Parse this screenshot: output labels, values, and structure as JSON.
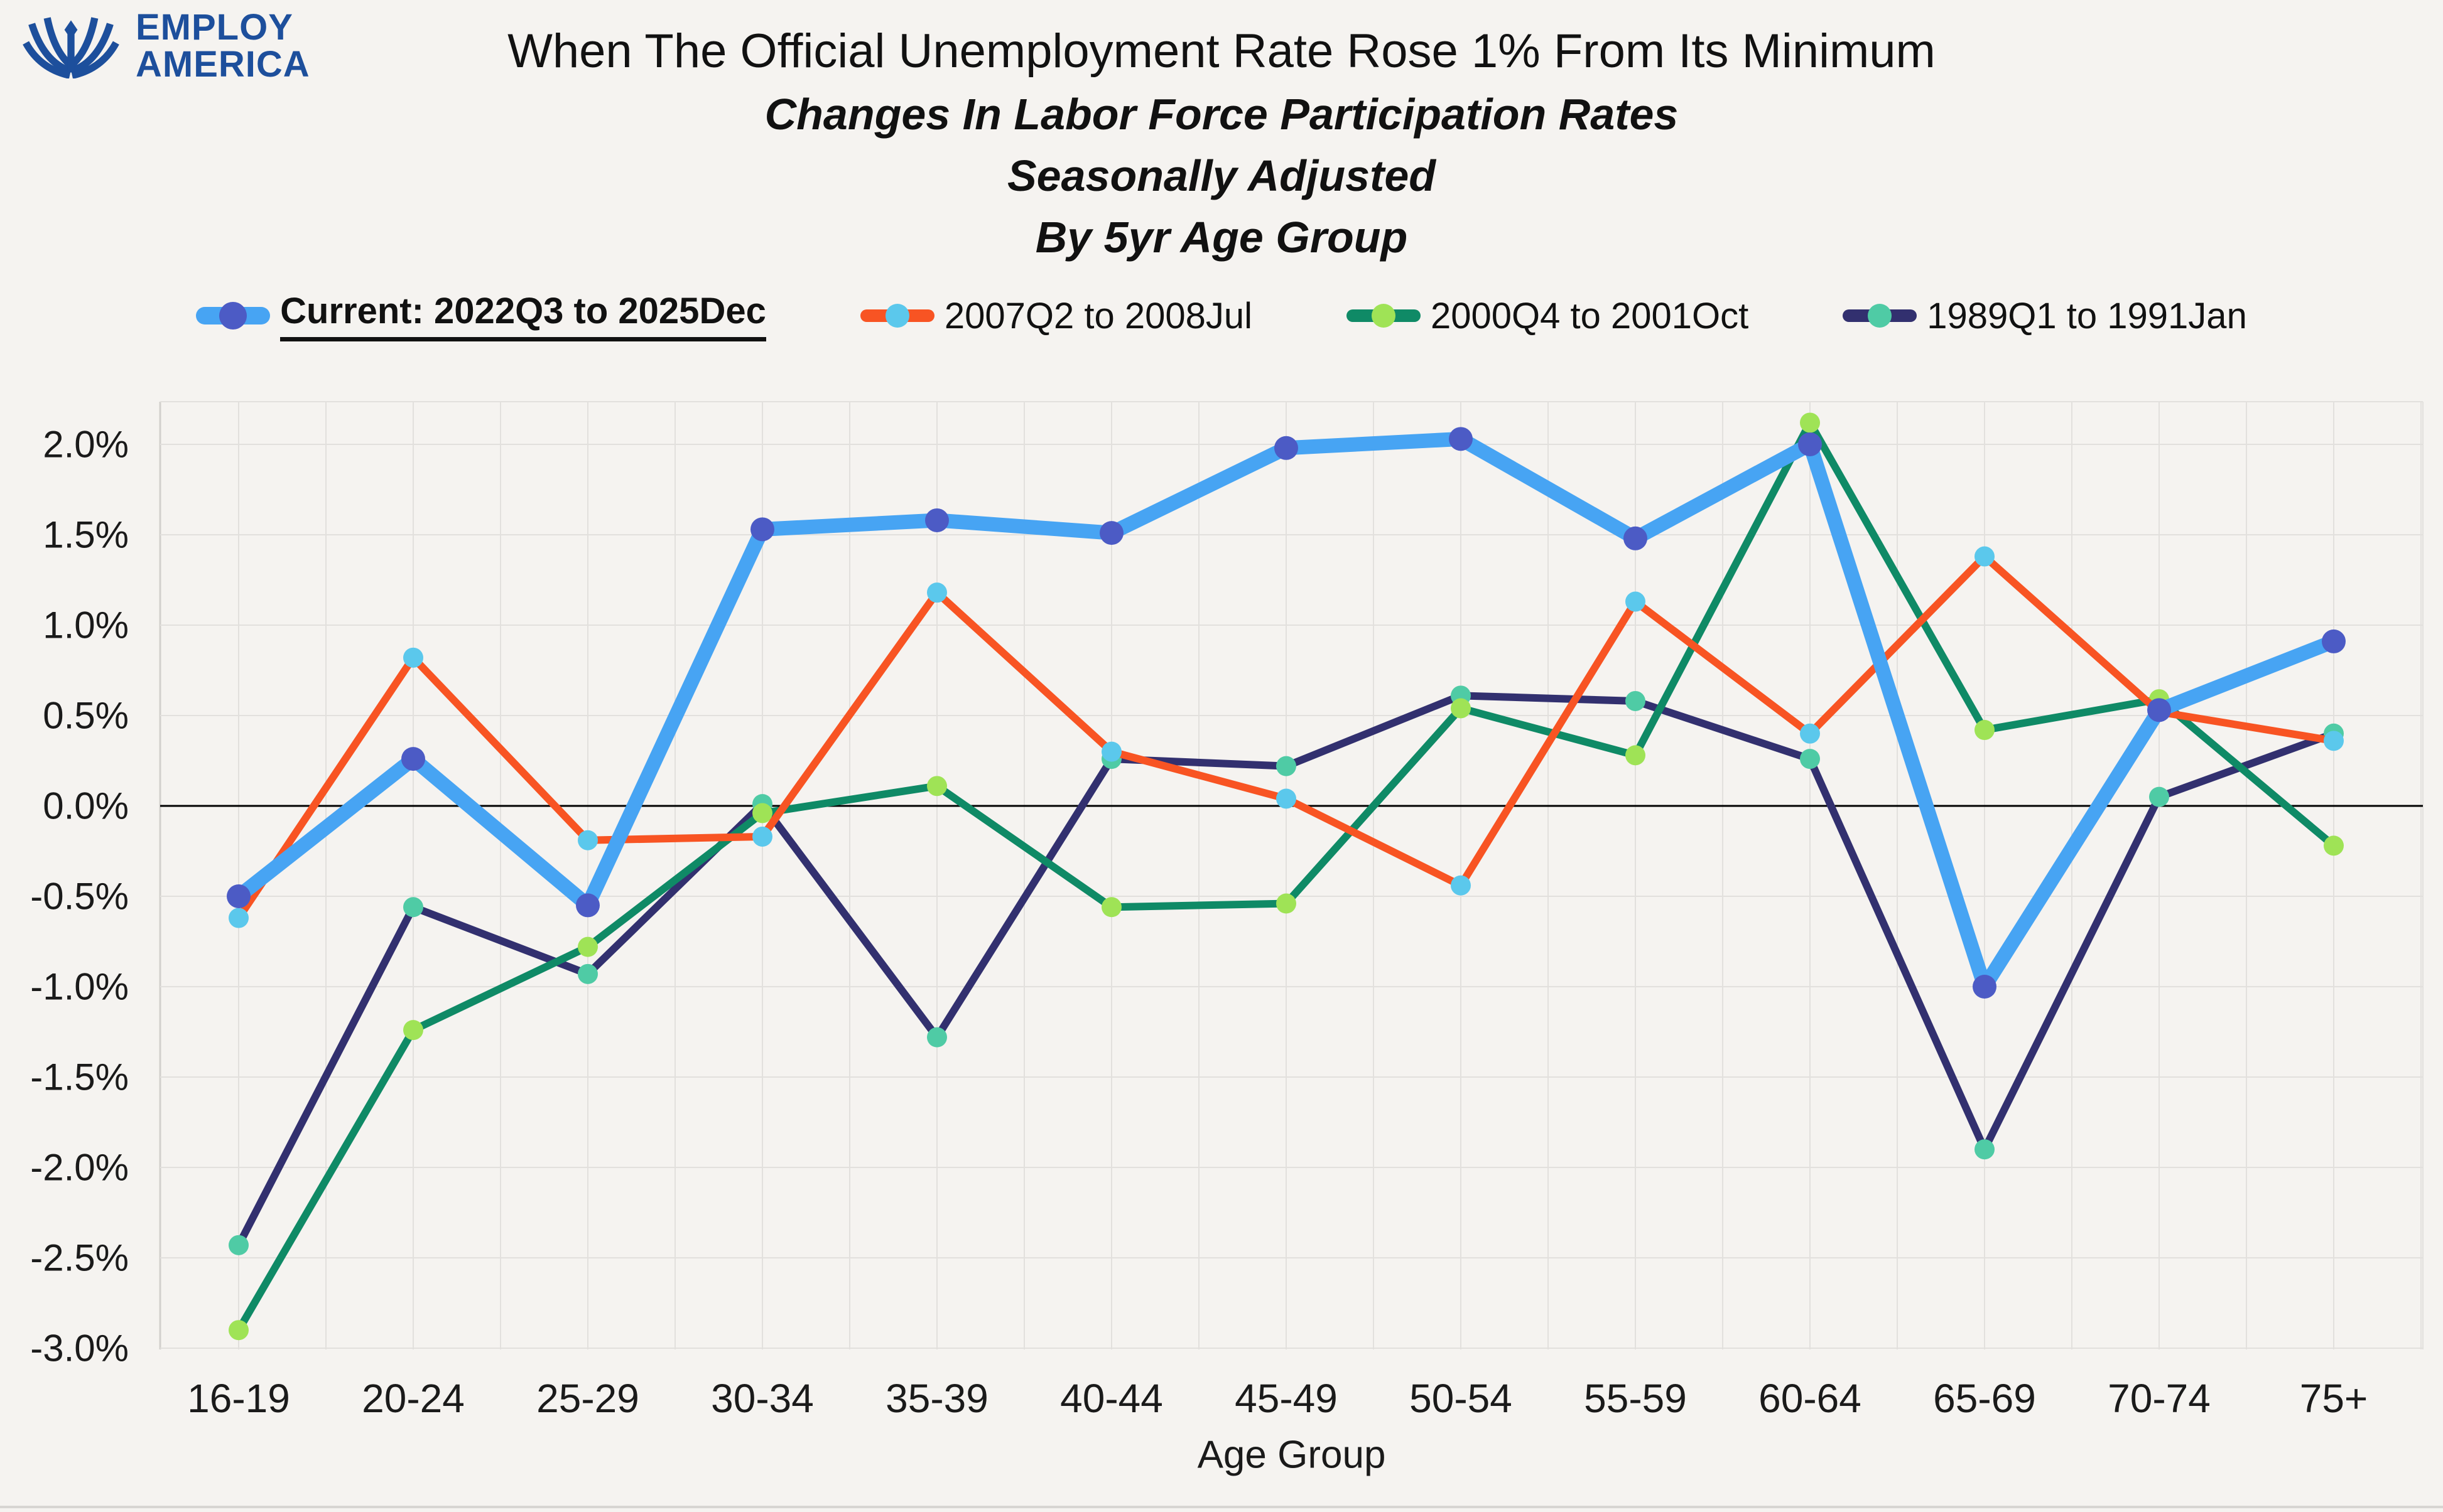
{
  "header": {
    "logo_line1": "EMPLOY",
    "logo_line2": "AMERICA",
    "logo_color": "#1d4f9c",
    "title": "When The Official Unemployment Rate Rose 1% From Its Minimum",
    "subtitle1": "Changes In Labor Force Participation Rates",
    "subtitle2": "Seasonally Adjusted",
    "subtitle3": "By 5yr Age Group"
  },
  "colors": {
    "background": "#f5f3f0",
    "grid": "#e2e0dd",
    "zero_line": "#000000",
    "axis_text": "#1a1a1a"
  },
  "chart_data": {
    "type": "line",
    "title": "When The Official Unemployment Rate Rose 1% From Its Minimum — Changes In Labor Force Participation Rates, Seasonally Adjusted, By 5yr Age Group",
    "xlabel": "Age Group",
    "ylabel": "",
    "ylim": [
      -3.0,
      2.0
    ],
    "ytick_step": 0.5,
    "ytick_labels": [
      "2.0%",
      "1.5%",
      "1.0%",
      "0.5%",
      "0.0%",
      "-0.5%",
      "-1.0%",
      "-1.5%",
      "-2.0%",
      "-2.5%",
      "-3.0%"
    ],
    "ytick_values": [
      2.0,
      1.5,
      1.0,
      0.5,
      0.0,
      -0.5,
      -1.0,
      -1.5,
      -2.0,
      -2.5,
      -3.0
    ],
    "grid": true,
    "legend_position": "top",
    "categories": [
      "16-19",
      "20-24",
      "25-29",
      "30-34",
      "35-39",
      "40-44",
      "45-49",
      "50-54",
      "55-59",
      "60-64",
      "65-69",
      "70-74",
      "75+"
    ],
    "series": [
      {
        "name": "Current: 2022Q3 to 2025Dec",
        "emphasis": true,
        "line_color": "#47a4f3",
        "marker_color": "#4c5bc5",
        "line_width": 23,
        "marker_radius": 19,
        "values": [
          -0.5,
          0.26,
          -0.55,
          1.53,
          1.58,
          1.51,
          1.98,
          2.03,
          1.48,
          2.0,
          -1.0,
          0.53,
          0.91
        ]
      },
      {
        "name": "2007Q2 to 2008Jul",
        "emphasis": false,
        "line_color": "#f85423",
        "marker_color": "#5bc8ec",
        "line_width": 12,
        "marker_radius": 16,
        "values": [
          -0.62,
          0.82,
          -0.19,
          -0.17,
          1.18,
          0.3,
          0.04,
          -0.44,
          1.13,
          0.4,
          1.38,
          0.52,
          0.36
        ]
      },
      {
        "name": "2000Q4 to 2001Oct",
        "emphasis": false,
        "line_color": "#0f8a66",
        "marker_color": "#9fe356",
        "line_width": 12,
        "marker_radius": 16,
        "values": [
          -2.9,
          -1.24,
          -0.78,
          -0.04,
          0.11,
          -0.56,
          -0.54,
          0.54,
          0.28,
          2.12,
          0.42,
          0.59,
          -0.22
        ]
      },
      {
        "name": "1989Q1 to 1991Jan",
        "emphasis": false,
        "line_color": "#32306f",
        "marker_color": "#4fcba5",
        "line_width": 12,
        "marker_radius": 16,
        "values": [
          -2.43,
          -0.56,
          -0.93,
          0.01,
          -1.28,
          0.26,
          0.22,
          0.61,
          0.58,
          0.26,
          -1.9,
          0.05,
          0.4
        ]
      }
    ]
  }
}
